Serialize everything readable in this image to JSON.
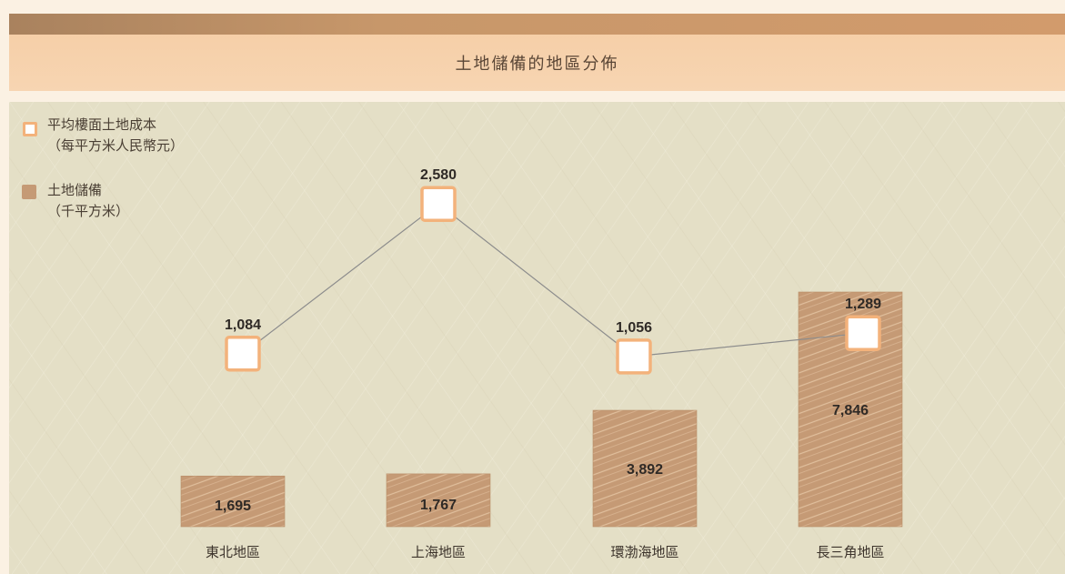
{
  "header": {
    "title": "土地儲備的地區分佈"
  },
  "legend": {
    "line_label_1": "平均樓面土地成本",
    "line_label_2": "（每平方米人民幣元）",
    "bar_label_1": "土地儲備",
    "bar_label_2": "（千平方米）"
  },
  "colors": {
    "bar_fill": "#c59a75",
    "bar_stripe": "#e6c6a4",
    "marker_border": "#f3b27b",
    "line": "#8c8c8c",
    "panel": "#e4dfc6",
    "title_band": "#f6cfa8"
  },
  "chart_data": {
    "type": "bar+line",
    "categories": [
      "東北地區",
      "上海地區",
      "環渤海地區",
      "長三角地區"
    ],
    "series": [
      {
        "name": "土地儲備（千平方米）",
        "type": "bar",
        "values": [
          1695,
          1767,
          3892,
          7846
        ],
        "labels": [
          "1,695",
          "1,767",
          "3,892",
          "7,846"
        ]
      },
      {
        "name": "平均樓面土地成本（每平方米人民幣元）",
        "type": "line",
        "values": [
          1084,
          2580,
          1056,
          1289
        ],
        "labels": [
          "1,084",
          "2,580",
          "1,056",
          "1,289"
        ]
      }
    ],
    "legend_position": "top-left",
    "grid": false
  }
}
